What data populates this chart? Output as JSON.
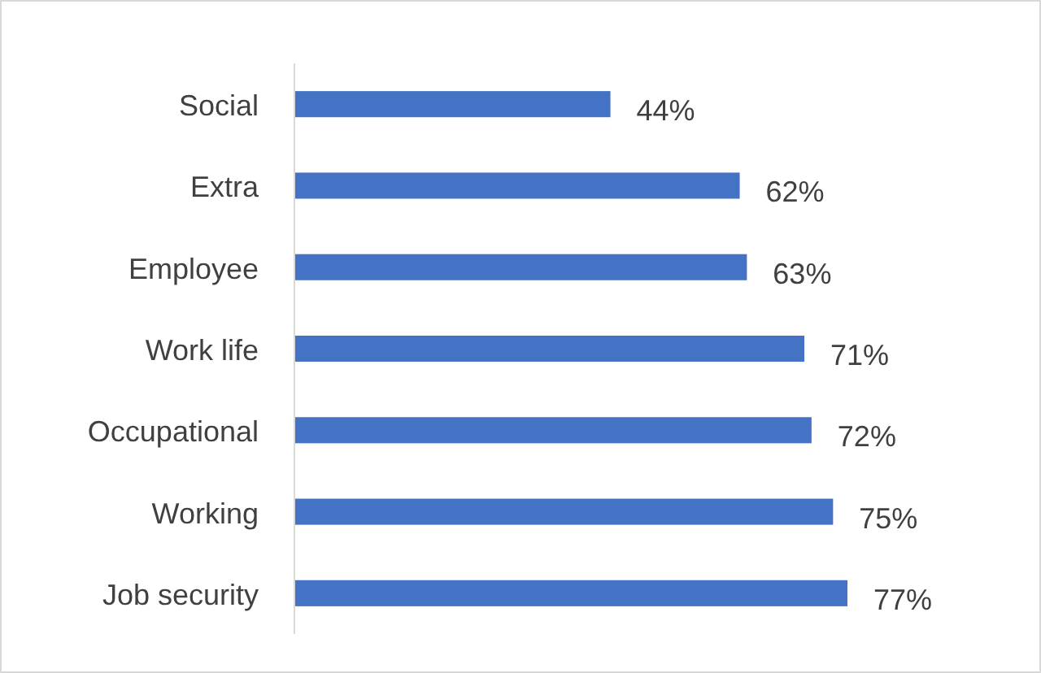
{
  "chart_data": {
    "type": "bar",
    "orientation": "horizontal",
    "categories": [
      "Social",
      "Extra",
      "Employee",
      "Work life",
      "Occupational",
      "Working",
      "Job security"
    ],
    "values": [
      44,
      62,
      63,
      71,
      72,
      75,
      77
    ],
    "value_labels": [
      "44%",
      "62%",
      "63%",
      "71%",
      "72%",
      "75%",
      "77%"
    ],
    "color": "#4472c4",
    "tick_labels": "y"
  }
}
